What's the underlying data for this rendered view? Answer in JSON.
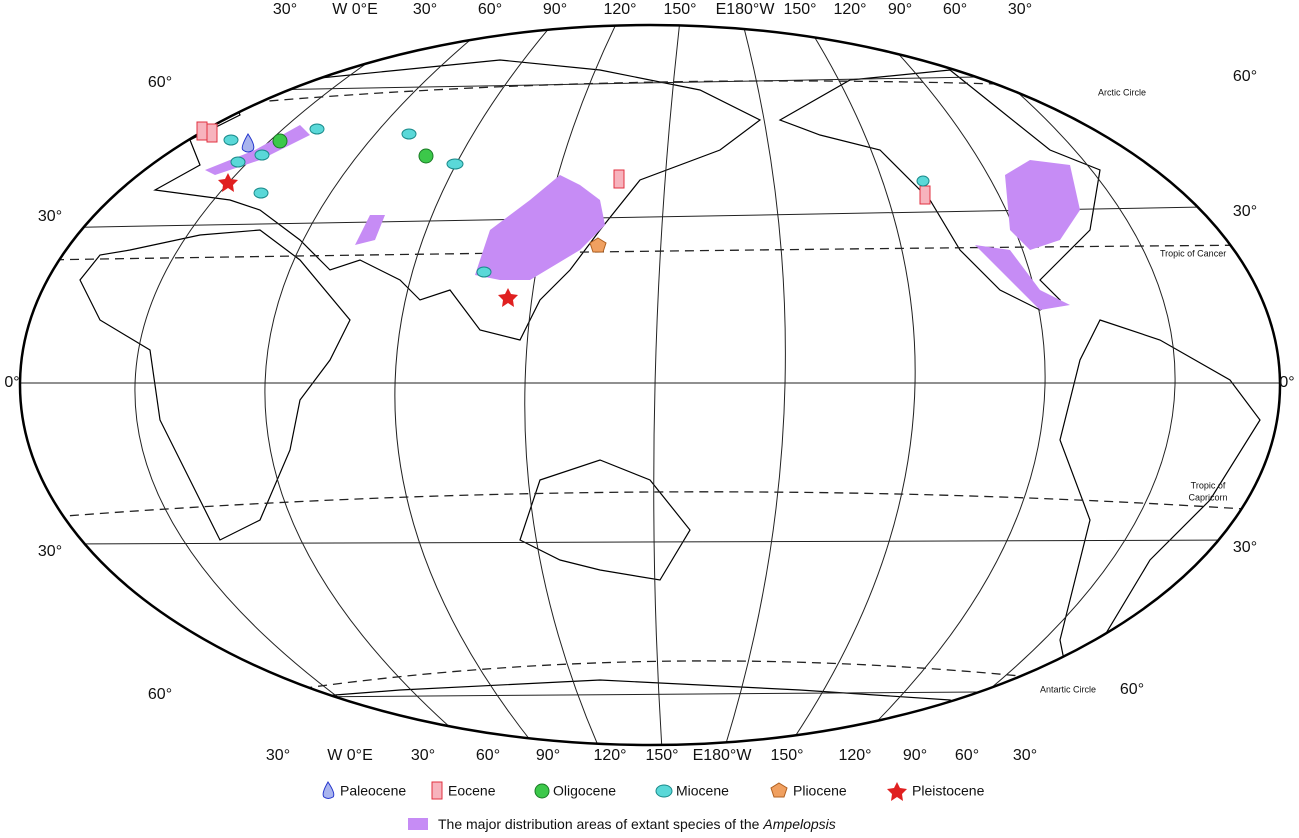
{
  "graticule": {
    "top": [
      "30°",
      "W 0°E",
      "30°",
      "60°",
      "90°",
      "120°",
      "150°",
      "E180°W",
      "150°",
      "120°",
      "90°",
      "60°",
      "30°"
    ],
    "bottom": [
      "30°",
      "W 0°E",
      "30°",
      "60°",
      "90°",
      "120°",
      "150°",
      "E180°W",
      "150°",
      "120°",
      "90°",
      "60°",
      "30°"
    ],
    "left": [
      "60°",
      "30°",
      "0°",
      "30°",
      "60°"
    ],
    "right": [
      "60°",
      "30°",
      "0°",
      "30°",
      "60°"
    ]
  },
  "map_labels": {
    "arctic": "Arctic Circle",
    "cancer": "Tropic of Cancer",
    "capricorn_1": "Tropic of",
    "capricorn_2": "Capricorn",
    "antarctic": "Antartic Circle"
  },
  "legend": {
    "items": [
      "Paleocene",
      "Eocene",
      "Oligocene",
      "Miocene",
      "Pliocene",
      "Pleistocene"
    ],
    "note": "The major distribution areas of extant species of the",
    "note_italic": "Ampelopsis"
  }
}
